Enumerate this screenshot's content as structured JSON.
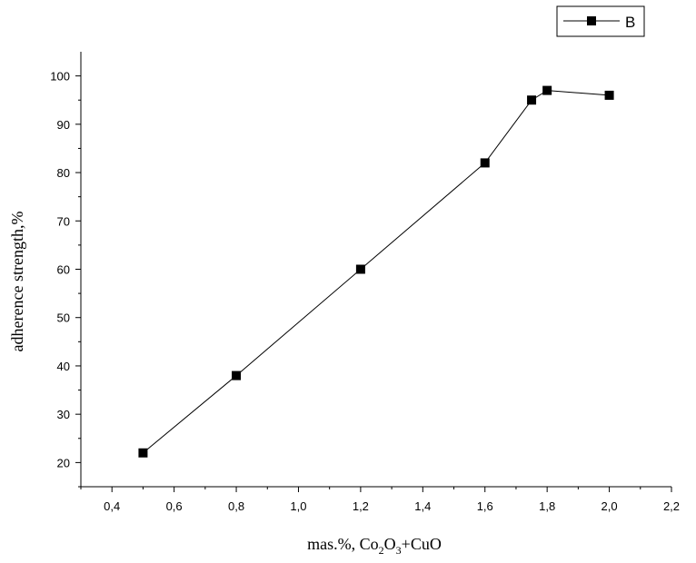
{
  "chart_data": {
    "type": "line",
    "series": [
      {
        "name": "B",
        "x": [
          0.5,
          0.8,
          1.2,
          1.6,
          1.75,
          1.8,
          2.0
        ],
        "y": [
          22,
          38,
          60,
          82,
          95,
          97,
          96
        ]
      }
    ],
    "xlabel": {
      "prefix": "mas.%, Co",
      "sub1": "2",
      "mid": "O",
      "sub2": "3",
      "suffix": "+CuO"
    },
    "ylabel": "adherence strength,%",
    "xlim": [
      0.3,
      2.2
    ],
    "ylim": [
      15,
      105
    ],
    "x_ticks": [
      "0,4",
      "0,6",
      "0,8",
      "1,0",
      "1,2",
      "1,4",
      "1,6",
      "1,8",
      "2,0",
      "2,2"
    ],
    "y_ticks": [
      "20",
      "30",
      "40",
      "50",
      "60",
      "70",
      "80",
      "90",
      "100"
    ],
    "grid": false,
    "legend": "top-right",
    "marker": "square",
    "line_color": "#000000"
  }
}
